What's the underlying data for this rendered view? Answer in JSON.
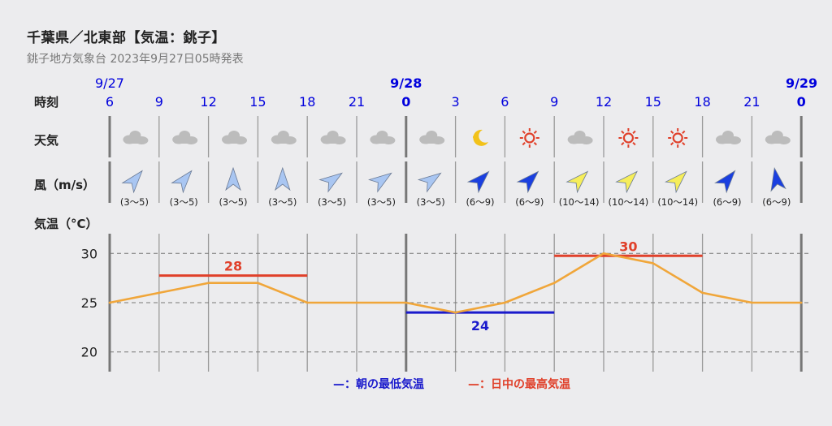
{
  "header": {
    "title": "千葉県／北東部【気温：銚子】",
    "subtitle": "銚子地方気象台 2023年9月27日05時発表"
  },
  "rows": {
    "time_label": "時刻",
    "weather_label": "天気",
    "wind_label": "風（m/s）",
    "temp_label": "気温（°C）"
  },
  "dates": [
    {
      "label": "9/27",
      "index": 0
    },
    {
      "label": "9/28",
      "index": 6
    },
    {
      "label": "9/29",
      "index": 14
    }
  ],
  "times": [
    "6",
    "9",
    "12",
    "15",
    "18",
    "21",
    "0",
    "3",
    "6",
    "9",
    "12",
    "15",
    "18",
    "21",
    "0"
  ],
  "weather": [
    "cloud-icon",
    "cloud-icon",
    "cloud-icon",
    "cloud-icon",
    "cloud-icon",
    "cloud-icon",
    "cloud-icon",
    "moon-icon",
    "sun-icon",
    "cloud-icon",
    "sun-icon",
    "sun-icon",
    "cloud-icon",
    "cloud-icon"
  ],
  "wind": [
    {
      "range": "(3〜5)",
      "level": "light"
    },
    {
      "range": "(3〜5)",
      "level": "light"
    },
    {
      "range": "(3〜5)",
      "level": "light"
    },
    {
      "range": "(3〜5)",
      "level": "light"
    },
    {
      "range": "(3〜5)",
      "level": "light"
    },
    {
      "range": "(3〜5)",
      "level": "light"
    },
    {
      "range": "(3〜5)",
      "level": "light"
    },
    {
      "range": "(6〜9)",
      "level": "moderate"
    },
    {
      "range": "(6〜9)",
      "level": "moderate"
    },
    {
      "range": "(10〜14)",
      "level": "strong"
    },
    {
      "range": "(10〜14)",
      "level": "strong"
    },
    {
      "range": "(10〜14)",
      "level": "strong"
    },
    {
      "range": "(6〜9)",
      "level": "moderate"
    },
    {
      "range": "(6〜9)",
      "level": "moderate"
    }
  ],
  "colors": {
    "light": "#a9c6f2",
    "moderate": "#1a3fe0",
    "strong": "#f6ee5a",
    "temp_line": "#f0a63a",
    "min_line": "#1a1acc",
    "max_line": "#e0402a",
    "date_text": "#0000dd",
    "cloud": "#bcbcbc",
    "sun": "#e0402a",
    "moon": "#f2c21a"
  },
  "chart_data": {
    "type": "line",
    "x": [
      "9/27 6",
      "9/27 9",
      "9/27 12",
      "9/27 15",
      "9/27 18",
      "9/27 21",
      "9/28 0",
      "9/28 3",
      "9/28 6",
      "9/28 9",
      "9/28 12",
      "9/28 15",
      "9/28 18",
      "9/28 21",
      "9/29 0"
    ],
    "series": [
      {
        "values": [
          25,
          26,
          27,
          27,
          25,
          25,
          25,
          24,
          25,
          27,
          30,
          29,
          26,
          25,
          25
        ]
      }
    ],
    "max_temps": [
      {
        "value": 28,
        "from": 1,
        "to": 4
      },
      {
        "value": 30,
        "from": 9,
        "to": 12
      }
    ],
    "min_temps": [
      {
        "value": 24,
        "from": 6,
        "to": 9
      }
    ],
    "yticks": [
      30,
      25,
      20
    ],
    "ylim": [
      18,
      32
    ],
    "grid": true,
    "legend": {
      "position": "bottom",
      "min_label": "—：朝の最低気温",
      "max_label": "—：日中の最高気温"
    }
  }
}
